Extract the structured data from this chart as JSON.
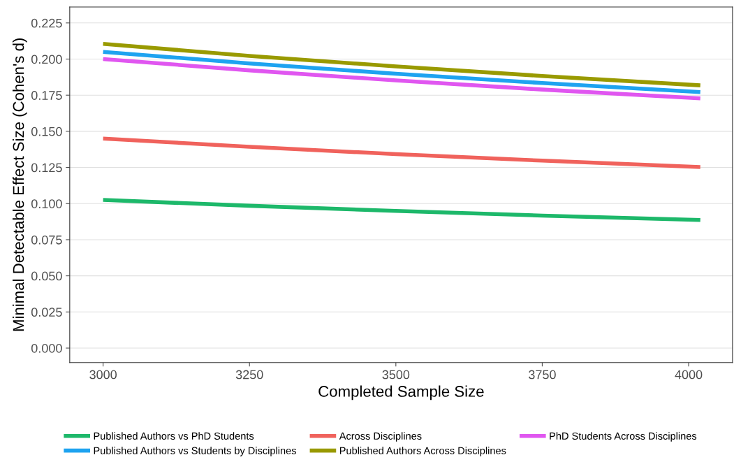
{
  "chart_data": {
    "type": "line",
    "xlabel": "Completed Sample Size",
    "ylabel": "Minimal Detectable Effect Size (Cohen's d)",
    "x": [
      3000,
      3250,
      3500,
      3750,
      4020
    ],
    "series": [
      {
        "name": "Published Authors vs PhD Students",
        "color": "#1db86a",
        "values": [
          0.1025,
          0.0985,
          0.0949,
          0.0917,
          0.0886
        ]
      },
      {
        "name": "Across Disciplines",
        "color": "#f0625c",
        "values": [
          0.145,
          0.1393,
          0.1342,
          0.1297,
          0.1253
        ]
      },
      {
        "name": "PhD Students Across Disciplines",
        "color": "#e056f0",
        "values": [
          0.2,
          0.1922,
          0.1852,
          0.1789,
          0.1728
        ]
      },
      {
        "name": "Published Authors vs Students by Disciplines",
        "color": "#1ea3f0",
        "values": [
          0.205,
          0.197,
          0.1898,
          0.1834,
          0.1771
        ]
      },
      {
        "name": "Published Authors Across Disciplines",
        "color": "#999a00",
        "values": [
          0.2105,
          0.2022,
          0.1949,
          0.1883,
          0.1818
        ]
      }
    ],
    "xlim": [
      2943,
      4075
    ],
    "xticks": [
      3000,
      3250,
      3500,
      3750,
      4000
    ],
    "ylim": [
      -0.01,
      0.236
    ],
    "yticks": [
      {
        "value": 0,
        "label": "0.000"
      },
      {
        "value": 0.025,
        "label": "0.025"
      },
      {
        "value": 0.05,
        "label": "0.050"
      },
      {
        "value": 0.075,
        "label": "0.075"
      },
      {
        "value": 0.1,
        "label": "0.100"
      },
      {
        "value": 0.125,
        "label": "0.125"
      },
      {
        "value": 0.15,
        "label": "0.150"
      },
      {
        "value": 0.175,
        "label": "0.175"
      },
      {
        "value": 0.2,
        "label": "0.200"
      },
      {
        "value": 0.225,
        "label": "0.225"
      }
    ],
    "grid": "y",
    "legend": "bottom",
    "line_style": "solid",
    "marker": "none"
  }
}
